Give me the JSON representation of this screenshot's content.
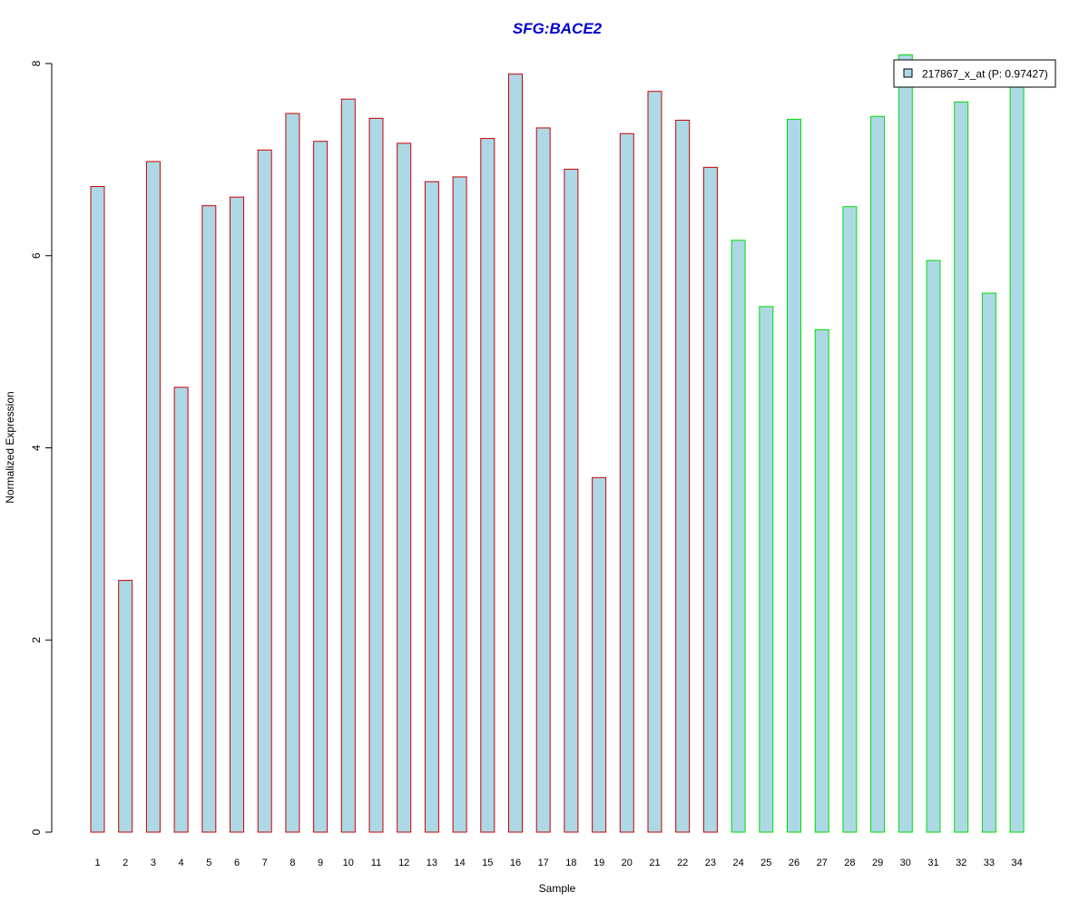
{
  "chart_data": {
    "type": "bar",
    "title": "SFG:BACE2",
    "xlabel": "Sample",
    "ylabel": "Normalized Expression",
    "ylim": [
      0,
      8
    ],
    "yticks": [
      "0",
      "2",
      "4",
      "6",
      "8"
    ],
    "grid": false,
    "legend_placement": "top-right",
    "categories": [
      "1",
      "2",
      "3",
      "4",
      "5",
      "6",
      "7",
      "8",
      "9",
      "10",
      "11",
      "12",
      "13",
      "14",
      "15",
      "16",
      "17",
      "18",
      "19",
      "20",
      "21",
      "22",
      "23",
      "24",
      "25",
      "26",
      "27",
      "28",
      "29",
      "30",
      "31",
      "32",
      "33",
      "34"
    ],
    "series": [
      {
        "name": "217867_x_at (P: 0.97427)",
        "values": [
          6.72,
          2.62,
          6.98,
          4.63,
          6.52,
          6.61,
          7.1,
          7.48,
          7.19,
          7.63,
          7.43,
          7.17,
          6.77,
          6.82,
          7.22,
          7.89,
          7.33,
          6.9,
          3.69,
          7.27,
          7.71,
          7.41,
          6.92,
          6.16,
          5.47,
          7.42,
          5.23,
          6.51,
          7.45,
          8.09,
          5.95,
          7.6,
          5.61,
          7.9
        ]
      }
    ],
    "group_colors": [
      "#cc0000",
      "#cc0000",
      "#cc0000",
      "#cc0000",
      "#cc0000",
      "#cc0000",
      "#cc0000",
      "#cc0000",
      "#cc0000",
      "#cc0000",
      "#cc0000",
      "#cc0000",
      "#cc0000",
      "#cc0000",
      "#cc0000",
      "#cc0000",
      "#cc0000",
      "#cc0000",
      "#cc0000",
      "#cc0000",
      "#cc0000",
      "#cc0000",
      "#cc0000",
      "#00dd00",
      "#00dd00",
      "#00dd00",
      "#00dd00",
      "#00dd00",
      "#00dd00",
      "#00dd00",
      "#00dd00",
      "#00dd00",
      "#00dd00",
      "#00dd00"
    ],
    "fill_color": "#add8e6",
    "title_color": "#0000cc"
  }
}
